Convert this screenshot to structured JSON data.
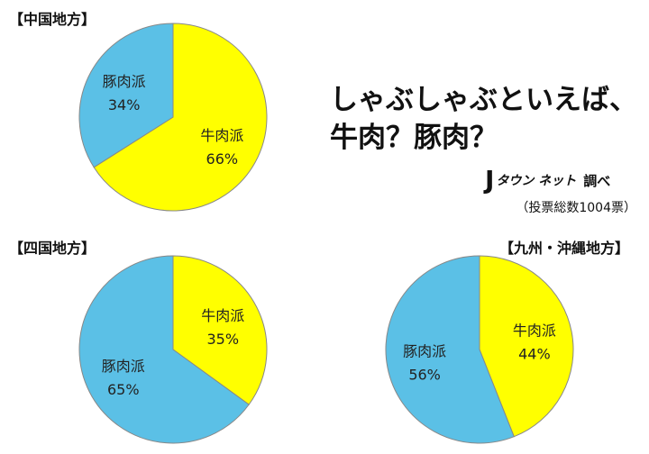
{
  "headline": {
    "line1": "しゃぶしゃぶといえば、",
    "line2": "牛肉？豚肉？"
  },
  "credit": {
    "logo_j": "J",
    "logo_text": "タウン ネット",
    "label": "調べ"
  },
  "sample_note": "（投票総数1004票）",
  "colors": {
    "beef": "#ffff00",
    "pork": "#5bc0e6",
    "outline": "#888888"
  },
  "chart_data": [
    {
      "type": "pie",
      "title": "【中国地方】",
      "slices": [
        {
          "label": "牛肉派",
          "value": 66,
          "value_text": "66%"
        },
        {
          "label": "豚肉派",
          "value": 34,
          "value_text": "34%"
        }
      ]
    },
    {
      "type": "pie",
      "title": "【四国地方】",
      "slices": [
        {
          "label": "牛肉派",
          "value": 35,
          "value_text": "35%"
        },
        {
          "label": "豚肉派",
          "value": 65,
          "value_text": "65%"
        }
      ]
    },
    {
      "type": "pie",
      "title": "【九州・沖縄地方】",
      "slices": [
        {
          "label": "牛肉派",
          "value": 44,
          "value_text": "44%"
        },
        {
          "label": "豚肉派",
          "value": 56,
          "value_text": "56%"
        }
      ]
    }
  ]
}
